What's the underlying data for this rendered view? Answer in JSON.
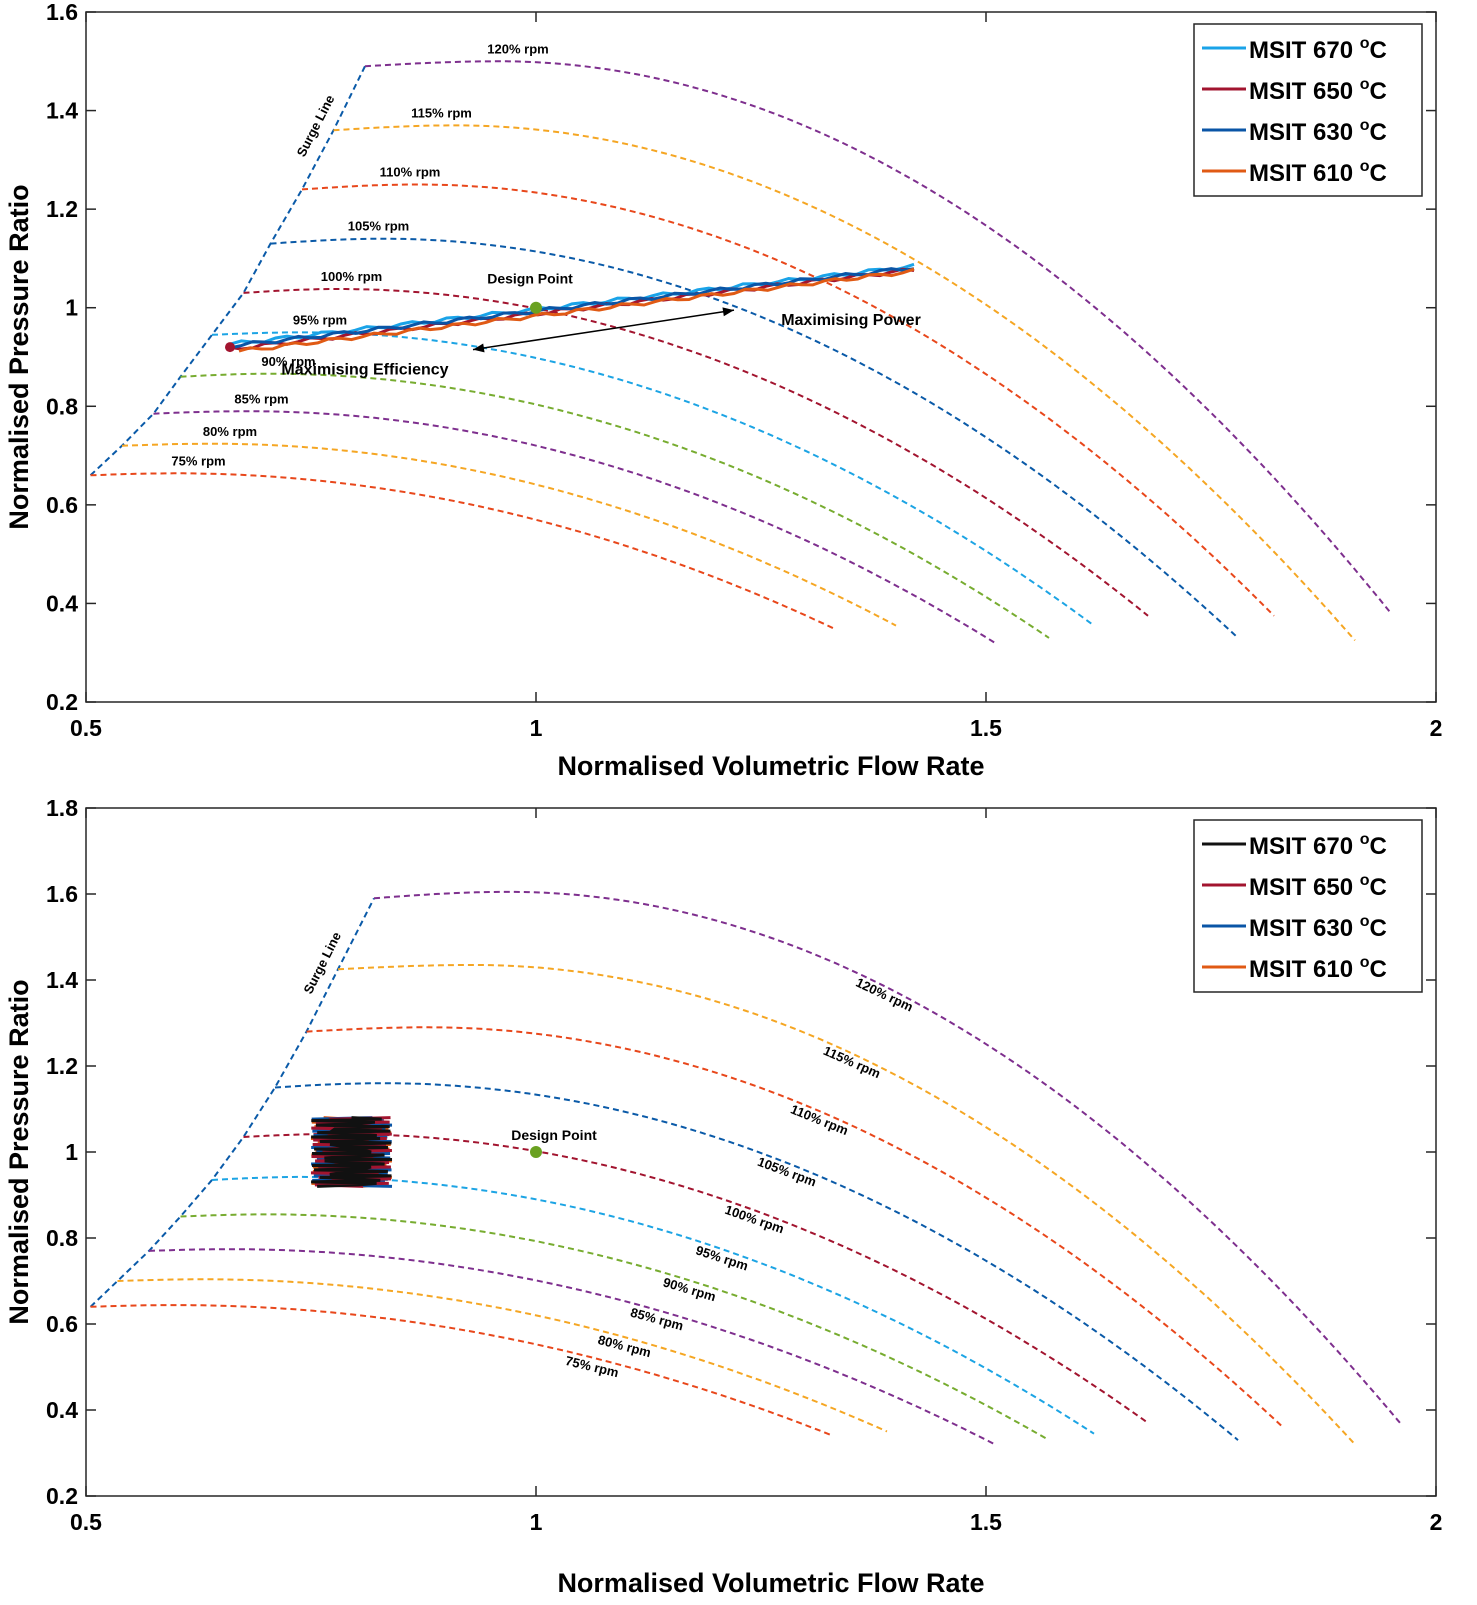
{
  "chart_data": [
    {
      "type": "line",
      "panel": "top",
      "title": "",
      "xlabel": "Normalised Volumetric Flow Rate",
      "ylabel": "Normalised Pressure Ratio",
      "xlim": [
        0.5,
        2
      ],
      "ylim": [
        0.2,
        1.6
      ],
      "xticks": [
        0.5,
        1,
        1.5,
        2
      ],
      "xtick_labels": [
        "0.5",
        "1",
        "1.5",
        "2"
      ],
      "yticks": [
        0.2,
        0.4,
        0.6,
        0.8,
        1.0,
        1.2,
        1.4,
        1.6
      ],
      "ytick_labels": [
        "0.2",
        "0.4",
        "0.6",
        "0.8",
        "1",
        "1.2",
        "1.4",
        "1.6"
      ],
      "grid": false,
      "legend_position": "top-right",
      "speed_lines": [
        {
          "label": "75% rpm",
          "color": "#e8471b",
          "x0": 0.505,
          "y0": 0.66,
          "xend": 1.33,
          "yend": 0.35,
          "xpeak": 0.6,
          "ypeak": 0.664
        },
        {
          "label": "80% rpm",
          "color": "#f5a623",
          "x0": 0.54,
          "y0": 0.72,
          "xend": 1.4,
          "yend": 0.355,
          "xpeak": 0.64,
          "ypeak": 0.724
        },
        {
          "label": "85% rpm",
          "color": "#7e2f8e",
          "x0": 0.575,
          "y0": 0.785,
          "xend": 1.51,
          "yend": 0.32,
          "xpeak": 0.68,
          "ypeak": 0.79
        },
        {
          "label": "90% rpm",
          "color": "#77ac30",
          "x0": 0.605,
          "y0": 0.86,
          "xend": 1.57,
          "yend": 0.33,
          "xpeak": 0.705,
          "ypeak": 0.866
        },
        {
          "label": "95% rpm",
          "color": "#1ca4e4",
          "x0": 0.64,
          "y0": 0.945,
          "xend": 1.62,
          "yend": 0.355,
          "xpeak": 0.74,
          "ypeak": 0.95
        },
        {
          "label": "100% rpm",
          "color": "#a2142f",
          "x0": 0.675,
          "y0": 1.03,
          "xend": 1.68,
          "yend": 0.375,
          "xpeak": 0.78,
          "ypeak": 1.038
        },
        {
          "label": "105% rpm",
          "color": "#0a5aa8",
          "x0": 0.705,
          "y0": 1.13,
          "xend": 1.78,
          "yend": 0.33,
          "xpeak": 0.83,
          "ypeak": 1.14
        },
        {
          "label": "110% rpm",
          "color": "#e8471b",
          "x0": 0.74,
          "y0": 1.24,
          "xend": 1.82,
          "yend": 0.375,
          "xpeak": 0.87,
          "ypeak": 1.25
        },
        {
          "label": "115% rpm",
          "color": "#f5a623",
          "x0": 0.775,
          "y0": 1.36,
          "xend": 1.91,
          "yend": 0.325,
          "xpeak": 0.91,
          "ypeak": 1.37
        },
        {
          "label": "120% rpm",
          "color": "#7e2f8e",
          "x0": 0.81,
          "y0": 1.49,
          "xend": 1.95,
          "yend": 0.38,
          "xpeak": 0.96,
          "ypeak": 1.5
        }
      ],
      "surge_line": {
        "label": "Surge Line",
        "color": "#0a5aa8"
      },
      "design_point": {
        "label": "Design Point",
        "x": 1.0,
        "y": 1.0,
        "color": "#6aa121"
      },
      "operating_lines": {
        "kind": "band",
        "x0": 0.66,
        "y0": 0.92,
        "x1": 1.42,
        "y1": 1.08
      },
      "annotations": {
        "max_power": "Maximising Power",
        "max_efficiency": "Maximising Efficiency",
        "arrow": {
          "x0": 0.93,
          "y0": 0.915,
          "x1": 1.22,
          "y1": 0.995
        }
      },
      "series": [
        {
          "name": "MSIT 670 °C",
          "legend_main": "MSIT 670 ",
          "legend_sup": "o",
          "legend_tail": "C",
          "color": "#1aa3e8"
        },
        {
          "name": "MSIT 650 °C",
          "legend_main": "MSIT 650 ",
          "legend_sup": "o",
          "legend_tail": "C",
          "color": "#a2142f"
        },
        {
          "name": "MSIT 630 °C",
          "legend_main": "MSIT 630 ",
          "legend_sup": "o",
          "legend_tail": "C",
          "color": "#0a55a6"
        },
        {
          "name": "MSIT 610 °C",
          "legend_main": "MSIT 610 ",
          "legend_sup": "o",
          "legend_tail": "C",
          "color": "#e05a14"
        }
      ]
    },
    {
      "type": "line",
      "panel": "bottom",
      "title": "",
      "xlabel": "Normalised Volumetric Flow Rate",
      "ylabel": "Normalised Pressure Ratio",
      "xlim": [
        0.5,
        2
      ],
      "ylim": [
        0.2,
        1.8
      ],
      "xticks": [
        0.5,
        1,
        1.5,
        2
      ],
      "xtick_labels": [
        "0.5",
        "1",
        "1.5",
        "2"
      ],
      "yticks": [
        0.2,
        0.4,
        0.6,
        0.8,
        1.0,
        1.2,
        1.4,
        1.6,
        1.8
      ],
      "ytick_labels": [
        "0.2",
        "0.4",
        "0.6",
        "0.8",
        "1",
        "1.2",
        "1.4",
        "1.6",
        "1.8"
      ],
      "grid": false,
      "legend_position": "top-right",
      "speed_lines": [
        {
          "label": "75% rpm",
          "color": "#e8471b",
          "x0": 0.505,
          "y0": 0.64,
          "xend": 1.33,
          "yend": 0.34,
          "xpeak": 0.6,
          "ypeak": 0.644
        },
        {
          "label": "80% rpm",
          "color": "#f5a623",
          "x0": 0.535,
          "y0": 0.7,
          "xend": 1.39,
          "yend": 0.35,
          "xpeak": 0.63,
          "ypeak": 0.704
        },
        {
          "label": "85% rpm",
          "color": "#7e2f8e",
          "x0": 0.57,
          "y0": 0.77,
          "xend": 1.51,
          "yend": 0.32,
          "xpeak": 0.66,
          "ypeak": 0.774
        },
        {
          "label": "90% rpm",
          "color": "#77ac30",
          "x0": 0.605,
          "y0": 0.85,
          "xend": 1.57,
          "yend": 0.33,
          "xpeak": 0.7,
          "ypeak": 0.855
        },
        {
          "label": "95% rpm",
          "color": "#1ca4e4",
          "x0": 0.64,
          "y0": 0.935,
          "xend": 1.62,
          "yend": 0.345,
          "xpeak": 0.74,
          "ypeak": 0.942
        },
        {
          "label": "100% rpm",
          "color": "#a2142f",
          "x0": 0.675,
          "y0": 1.035,
          "xend": 1.68,
          "yend": 0.37,
          "xpeak": 0.78,
          "ypeak": 1.042
        },
        {
          "label": "105% rpm",
          "color": "#0a5aa8",
          "x0": 0.71,
          "y0": 1.15,
          "xend": 1.78,
          "yend": 0.33,
          "xpeak": 0.83,
          "ypeak": 1.16
        },
        {
          "label": "110% rpm",
          "color": "#e8471b",
          "x0": 0.745,
          "y0": 1.28,
          "xend": 1.83,
          "yend": 0.36,
          "xpeak": 0.88,
          "ypeak": 1.29
        },
        {
          "label": "115% rpm",
          "color": "#f5a623",
          "x0": 0.78,
          "y0": 1.425,
          "xend": 1.91,
          "yend": 0.32,
          "xpeak": 0.93,
          "ypeak": 1.435
        },
        {
          "label": "120% rpm",
          "color": "#7e2f8e",
          "x0": 0.82,
          "y0": 1.59,
          "xend": 1.96,
          "yend": 0.37,
          "xpeak": 0.97,
          "ypeak": 1.605
        }
      ],
      "surge_line": {
        "label": "Surge Line",
        "color": "#0a5aa8"
      },
      "design_point": {
        "label": "Design Point",
        "x": 1.0,
        "y": 1.0,
        "color": "#6aa121"
      },
      "operating_lines": {
        "kind": "cluster",
        "xmin": 0.73,
        "xmax": 0.86,
        "ymin": 0.92,
        "ymax": 1.08
      },
      "series": [
        {
          "name": "MSIT 670 °C",
          "legend_main": "MSIT 670 ",
          "legend_sup": "o",
          "legend_tail": "C",
          "color": "#111111"
        },
        {
          "name": "MSIT 650 °C",
          "legend_main": "MSIT 650 ",
          "legend_sup": "o",
          "legend_tail": "C",
          "color": "#a2142f"
        },
        {
          "name": "MSIT 630 °C",
          "legend_main": "MSIT 630 ",
          "legend_sup": "o",
          "legend_tail": "C",
          "color": "#0a55a6"
        },
        {
          "name": "MSIT 610 °C",
          "legend_main": "MSIT 610 ",
          "legend_sup": "o",
          "legend_tail": "C",
          "color": "#e05a14"
        }
      ]
    }
  ]
}
